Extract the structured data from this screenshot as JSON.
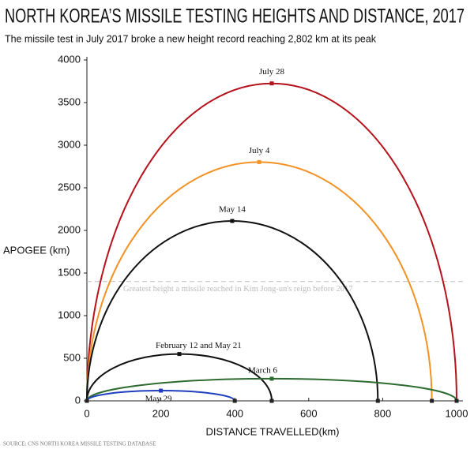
{
  "chart_data": {
    "type": "trajectory",
    "title": "NORTH KOREA’S MISSILE TESTING HEIGHTS AND DISTANCE, 2017",
    "subtitle": "The missile test in July 2017 broke a new height record reaching 2,802 km at its peak",
    "x_label": "DISTANCE TRAVELLED(km)",
    "y_label": "APOGEE (km)",
    "source": "SOURCE: CNS NORTH KOREA MISSILE TESTING DATABASE",
    "xlim": [
      0,
      1000
    ],
    "xticks": [
      0,
      200,
      400,
      600,
      800,
      1000
    ],
    "ylim": [
      0,
      4000
    ],
    "yticks": [
      0,
      500,
      1000,
      1500,
      2000,
      2500,
      3000,
      3500,
      4000
    ],
    "reference": {
      "value": 1400,
      "label": "Greatest height a missile reached in Kim Jong-un's reign before 2017"
    },
    "series": [
      {
        "name": "July 28",
        "color": "#b5121b",
        "x": [
          0,
          500,
          1000
        ],
        "values": [
          0,
          3725,
          0
        ]
      },
      {
        "name": "July 4",
        "color": "#f39224",
        "x": [
          0,
          466,
          933
        ],
        "values": [
          0,
          2802,
          0
        ]
      },
      {
        "name": "May 14",
        "color": "#111111",
        "x": [
          0,
          393,
          787
        ],
        "values": [
          0,
          2111,
          0
        ]
      },
      {
        "name": "February 12 and May 21",
        "color": "#111111",
        "x": [
          0,
          250,
          500
        ],
        "values": [
          0,
          550,
          0
        ]
      },
      {
        "name": "March 6",
        "color": "#2e6b30",
        "x": [
          0,
          500,
          1000
        ],
        "values": [
          0,
          260,
          0
        ]
      },
      {
        "name": "May 29",
        "color": "#1f3fbf",
        "x": [
          0,
          200,
          400
        ],
        "values": [
          0,
          120,
          0
        ]
      }
    ]
  }
}
